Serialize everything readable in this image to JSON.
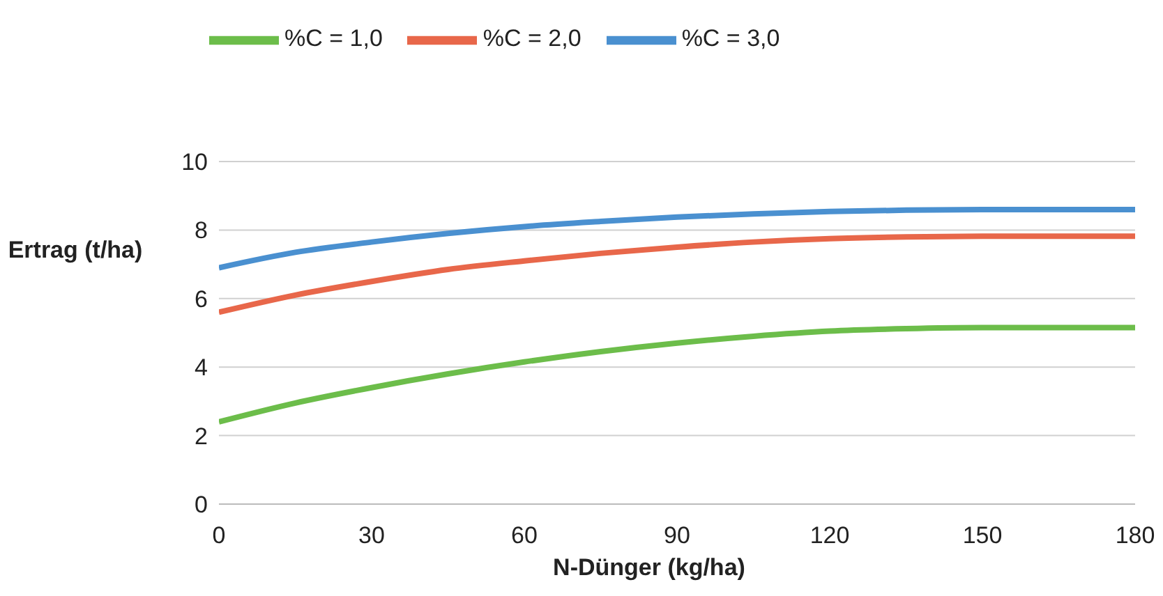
{
  "chart_data": {
    "type": "line",
    "xlabel": "N-Dünger (kg/ha)",
    "ylabel": "Ertrag (t/ha)",
    "x": [
      0,
      15,
      30,
      45,
      60,
      75,
      90,
      105,
      120,
      135,
      150,
      165,
      180
    ],
    "series": [
      {
        "name": "%C = 3,0",
        "color": "#4a90d0",
        "values": [
          6.9,
          7.35,
          7.65,
          7.9,
          8.1,
          8.25,
          8.38,
          8.47,
          8.54,
          8.58,
          8.6,
          8.6,
          8.6
        ]
      },
      {
        "name": "%C = 2,0",
        "color": "#e8674a",
        "values": [
          5.6,
          6.1,
          6.5,
          6.85,
          7.1,
          7.32,
          7.5,
          7.65,
          7.75,
          7.8,
          7.82,
          7.82,
          7.82
        ]
      },
      {
        "name": "%C = 1,0",
        "color": "#6cbd4a",
        "values": [
          2.4,
          2.95,
          3.4,
          3.8,
          4.15,
          4.45,
          4.7,
          4.9,
          5.05,
          5.12,
          5.15,
          5.15,
          5.15
        ]
      }
    ],
    "xlim": [
      0,
      180
    ],
    "xticks": [
      0,
      30,
      60,
      90,
      120,
      150,
      180
    ],
    "ylim": [
      0,
      10
    ],
    "yticks": [
      0,
      2,
      4,
      6,
      8,
      10
    ],
    "grid": "y",
    "legend": "top",
    "line_style": "solid",
    "marker": "none"
  }
}
